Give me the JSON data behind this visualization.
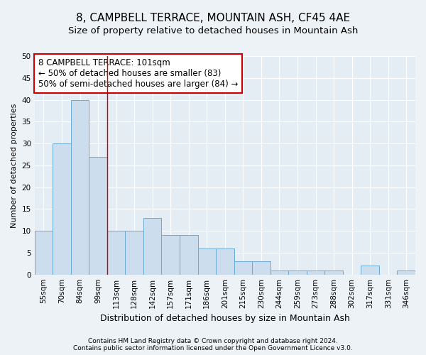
{
  "title": "8, CAMPBELL TERRACE, MOUNTAIN ASH, CF45 4AE",
  "subtitle": "Size of property relative to detached houses in Mountain Ash",
  "xlabel": "Distribution of detached houses by size in Mountain Ash",
  "ylabel": "Number of detached properties",
  "categories": [
    "55sqm",
    "70sqm",
    "84sqm",
    "99sqm",
    "113sqm",
    "128sqm",
    "142sqm",
    "157sqm",
    "171sqm",
    "186sqm",
    "201sqm",
    "215sqm",
    "230sqm",
    "244sqm",
    "259sqm",
    "273sqm",
    "288sqm",
    "302sqm",
    "317sqm",
    "331sqm",
    "346sqm"
  ],
  "values": [
    10,
    30,
    40,
    27,
    10,
    10,
    13,
    9,
    9,
    6,
    6,
    3,
    3,
    1,
    1,
    1,
    1,
    0,
    2,
    0,
    1
  ],
  "bar_color": "#ccdded",
  "bar_edge_color": "#6aaad4",
  "red_line_x": 3.5,
  "annotation_line1": "8 CAMPBELL TERRACE: 101sqm",
  "annotation_line2": "← 50% of detached houses are smaller (83)",
  "annotation_line3": "50% of semi-detached houses are larger (84) →",
  "annotation_box_color": "white",
  "annotation_box_edge_color": "#cc0000",
  "ylim": [
    0,
    50
  ],
  "yticks": [
    0,
    5,
    10,
    15,
    20,
    25,
    30,
    35,
    40,
    45,
    50
  ],
  "footer_line1": "Contains HM Land Registry data © Crown copyright and database right 2024.",
  "footer_line2": "Contains public sector information licensed under the Open Government Licence v3.0.",
  "bg_color": "#edf2f7",
  "plot_bg_color": "#e4ecf4",
  "grid_color": "#ffffff",
  "title_fontsize": 11,
  "subtitle_fontsize": 9.5,
  "tick_fontsize": 7.5,
  "ylabel_fontsize": 8,
  "xlabel_fontsize": 9,
  "annotation_fontsize": 8.5,
  "footer_fontsize": 6.5
}
